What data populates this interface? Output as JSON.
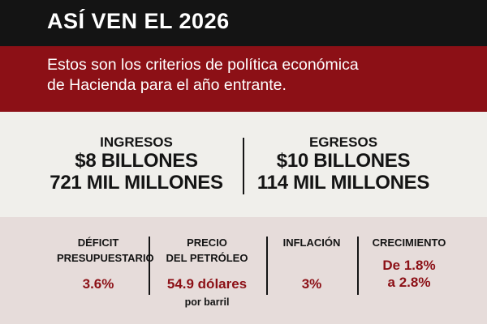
{
  "header": {
    "title": "ASÍ VEN EL 2026"
  },
  "intro": {
    "line1": "Estos son los criterios de política económica",
    "line2": "de Hacienda para el año entrante."
  },
  "summary": {
    "ingresos": {
      "label": "INGRESOS",
      "amount_line1": "$8 BILLONES",
      "amount_line2": "721 MIL MILLONES"
    },
    "egresos": {
      "label": "EGRESOS",
      "amount_line1": "$10 BILLONES",
      "amount_line2": "114 MIL MILLONES"
    }
  },
  "indicators": [
    {
      "label_line1": "DÉFICIT",
      "label_line2": "PRESUPUESTARIO",
      "value_line1": "3.6%",
      "value_line2": "",
      "note": ""
    },
    {
      "label_line1": "PRECIO",
      "label_line2": "DEL PETRÓLEO",
      "value_line1": "54.9 dólares",
      "value_line2": "",
      "note": "por barril"
    },
    {
      "label_line1": "INFLACIÓN",
      "label_line2": "",
      "value_line1": "3%",
      "value_line2": "",
      "note": ""
    },
    {
      "label_line1": "CRECIMIENTO",
      "label_line2": "",
      "value_line1": "De 1.8%",
      "value_line2": "a 2.8%",
      "note": ""
    }
  ],
  "colors": {
    "title_bg": "#141414",
    "accent_red": "#8c1016",
    "summary_bg": "#f0efeb",
    "indicators_bg": "#e6dcda"
  }
}
